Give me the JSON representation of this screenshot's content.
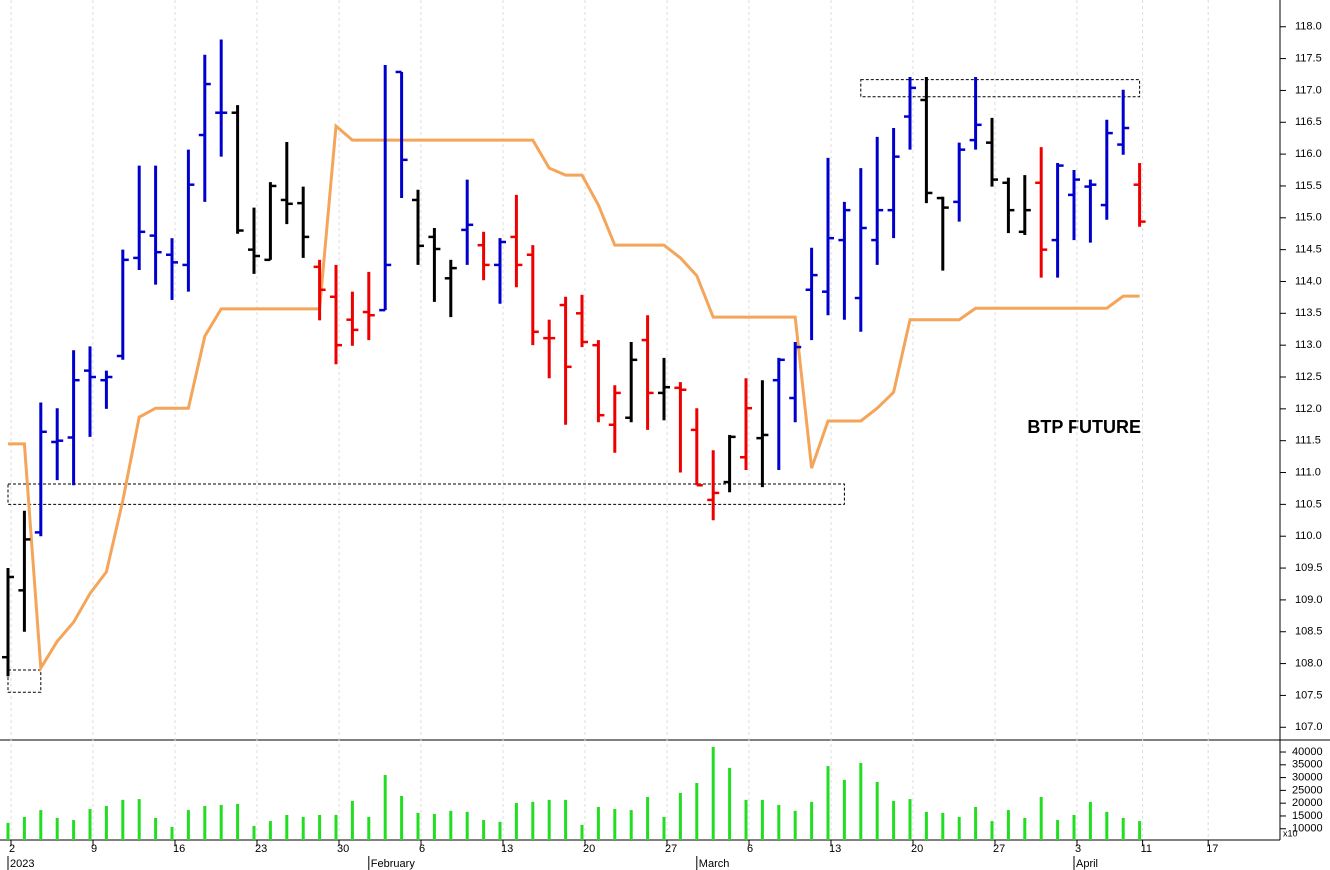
{
  "chart_data": {
    "type": "ohlc",
    "annotation": "BTP FUTURE",
    "categories": [
      "2",
      null,
      null,
      null,
      null,
      "9",
      null,
      null,
      null,
      null,
      "16",
      null,
      null,
      null,
      null,
      "23",
      null,
      null,
      null,
      null,
      "30",
      null,
      null,
      null,
      null,
      "6",
      null,
      null,
      null,
      null,
      "13",
      null,
      null,
      null,
      null,
      "20",
      null,
      null,
      null,
      null,
      "27",
      null,
      null,
      null,
      null,
      "6",
      null,
      null,
      null,
      null,
      "13",
      null,
      null,
      null,
      null,
      "20",
      null,
      null,
      null,
      null,
      "27",
      null,
      null,
      null,
      null,
      "3",
      null,
      null,
      null,
      "11",
      null,
      null,
      null,
      "17",
      null,
      null,
      null,
      null
    ],
    "month_labels": [
      {
        "value": 0,
        "label": "2023"
      },
      {
        "value": 22,
        "label": "February"
      },
      {
        "value": 42,
        "label": "March"
      },
      {
        "value": 65,
        "label": "April"
      }
    ],
    "open": [
      108.1,
      109.15,
      110.06,
      111.48,
      111.55,
      112.6,
      112.45,
      112.83,
      114.37,
      114.72,
      114.42,
      114.26,
      116.3,
      116.65,
      116.65,
      114.5,
      114.34,
      115.28,
      115.23,
      114.23,
      113.76,
      113.4,
      113.52,
      113.55,
      117.29,
      115.28,
      114.7,
      114.05,
      114.81,
      114.57,
      114.26,
      114.7,
      114.42,
      113.11,
      113.63,
      113.5,
      113.0,
      111.75,
      111.86,
      113.08,
      112.25,
      112.33,
      111.67,
      110.57,
      110.85,
      111.24,
      111.54,
      112.45,
      112.17,
      113.87,
      113.84,
      114.65,
      113.74,
      114.65,
      115.12,
      116.59,
      116.85,
      115.31,
      115.25,
      116.22,
      116.18,
      115.55,
      114.78,
      115.55,
      114.65,
      115.36,
      115.49,
      115.2,
      116.15,
      115.52,
      null,
      null,
      null,
      null,
      null,
      null,
      null,
      null
    ],
    "high": [
      109.5,
      110.4,
      112.1,
      112.01,
      112.92,
      112.98,
      112.6,
      114.5,
      115.82,
      115.82,
      114.68,
      116.07,
      117.56,
      117.8,
      116.77,
      115.16,
      115.56,
      116.19,
      115.49,
      114.34,
      114.26,
      113.84,
      114.15,
      117.4,
      117.29,
      115.44,
      114.84,
      114.34,
      115.6,
      114.78,
      114.68,
      115.36,
      114.57,
      113.4,
      113.76,
      113.79,
      113.08,
      112.37,
      113.05,
      113.47,
      112.8,
      112.42,
      112.01,
      111.35,
      111.59,
      112.48,
      112.45,
      112.8,
      113.05,
      114.53,
      115.94,
      115.25,
      115.78,
      116.27,
      116.41,
      117.21,
      117.21,
      115.33,
      116.18,
      117.21,
      116.57,
      115.63,
      115.67,
      116.11,
      115.86,
      115.75,
      115.6,
      116.54,
      117.01,
      115.86,
      null,
      null,
      null,
      null,
      null,
      null,
      null,
      null
    ],
    "low": [
      107.8,
      108.5,
      110.0,
      110.88,
      110.8,
      111.56,
      112.0,
      112.77,
      114.18,
      113.95,
      113.71,
      113.84,
      115.25,
      115.96,
      114.75,
      114.12,
      114.34,
      114.9,
      114.37,
      113.39,
      112.7,
      112.99,
      113.08,
      113.55,
      115.31,
      114.26,
      113.68,
      113.44,
      114.26,
      114.02,
      113.65,
      113.91,
      113.0,
      112.48,
      111.75,
      112.97,
      111.79,
      111.31,
      111.79,
      111.67,
      111.82,
      111.0,
      110.8,
      110.25,
      110.69,
      111.04,
      110.77,
      111.04,
      111.79,
      113.08,
      113.47,
      113.4,
      113.21,
      114.26,
      114.68,
      116.07,
      115.23,
      114.17,
      114.94,
      116.07,
      115.49,
      114.76,
      114.73,
      114.06,
      114.06,
      114.65,
      114.61,
      114.97,
      115.99,
      114.86,
      null,
      null,
      null,
      null,
      null,
      null,
      null,
      null
    ],
    "close": [
      109.36,
      109.95,
      111.64,
      111.5,
      112.45,
      112.5,
      112.5,
      114.34,
      114.78,
      114.46,
      114.3,
      115.52,
      117.1,
      116.65,
      114.8,
      114.4,
      115.5,
      115.22,
      114.7,
      113.87,
      113.0,
      113.24,
      113.47,
      114.26,
      115.91,
      114.56,
      114.51,
      114.21,
      114.89,
      114.26,
      114.62,
      114.26,
      113.21,
      113.11,
      112.66,
      113.05,
      111.9,
      112.25,
      112.77,
      112.25,
      112.34,
      112.3,
      110.8,
      110.68,
      111.56,
      112.01,
      111.59,
      112.77,
      112.97,
      114.1,
      114.68,
      115.12,
      114.84,
      115.12,
      115.96,
      117.04,
      115.39,
      115.16,
      116.07,
      116.46,
      115.6,
      115.12,
      115.12,
      114.5,
      115.82,
      115.6,
      115.52,
      116.33,
      116.41,
      114.94,
      null,
      null,
      null,
      null,
      null,
      null,
      null,
      null
    ],
    "colors": [
      "#000000",
      "#000000",
      "#0000cc",
      "#0000cc",
      "#0000cc",
      "#0000cc",
      "#0000cc",
      "#0000cc",
      "#0000cc",
      "#0000cc",
      "#0000cc",
      "#0000cc",
      "#0000cc",
      "#0000cc",
      "#000000",
      "#000000",
      "#000000",
      "#000000",
      "#000000",
      "#ee0000",
      "#ee0000",
      "#ee0000",
      "#ee0000",
      "#0000cc",
      "#0000cc",
      "#000000",
      "#000000",
      "#000000",
      "#0000cc",
      "#ee0000",
      "#0000cc",
      "#ee0000",
      "#ee0000",
      "#ee0000",
      "#ee0000",
      "#ee0000",
      "#ee0000",
      "#ee0000",
      "#000000",
      "#ee0000",
      "#000000",
      "#ee0000",
      "#ee0000",
      "#ee0000",
      "#000000",
      "#ee0000",
      "#000000",
      "#0000cc",
      "#0000cc",
      "#0000cc",
      "#0000cc",
      "#0000cc",
      "#0000cc",
      "#0000cc",
      "#0000cc",
      "#0000cc",
      "#000000",
      "#000000",
      "#0000cc",
      "#0000cc",
      "#000000",
      "#000000",
      "#000000",
      "#ee0000",
      "#0000cc",
      "#0000cc",
      "#0000cc",
      "#0000cc",
      "#0000cc",
      "#ee0000",
      null,
      null,
      null,
      null,
      null,
      null,
      null,
      null
    ],
    "stop_line": {
      "color": "#f5a55a",
      "values": [
        111.45,
        111.45,
        107.93,
        108.35,
        108.65,
        109.1,
        109.44,
        110.56,
        111.87,
        112.01,
        112.01,
        112.01,
        113.14,
        113.57,
        113.57,
        113.57,
        113.57,
        113.57,
        113.57,
        113.57,
        116.44,
        116.22,
        116.22,
        116.22,
        116.22,
        116.22,
        116.22,
        116.22,
        116.22,
        116.22,
        116.22,
        116.22,
        116.22,
        115.78,
        115.67,
        115.67,
        115.2,
        114.57,
        114.57,
        114.57,
        114.57,
        114.37,
        114.09,
        113.44,
        113.44,
        113.44,
        113.44,
        113.44,
        113.44,
        111.07,
        111.81,
        111.81,
        111.81,
        112.01,
        112.26,
        113.4,
        113.4,
        113.4,
        113.4,
        113.58,
        113.58,
        113.58,
        113.58,
        113.58,
        113.58,
        113.58,
        113.58,
        113.58,
        113.77,
        113.77,
        null,
        null,
        null,
        null,
        null,
        null,
        null,
        null
      ]
    },
    "zones": [
      {
        "start": 0,
        "end": 51,
        "low": 110.5,
        "high": 110.82
      },
      {
        "start": 52,
        "end": 69,
        "low": 116.9,
        "high": 117.17
      },
      {
        "start": 0,
        "end": 2,
        "low": 107.55,
        "high": 107.9
      }
    ],
    "ylim": [
      106.8,
      118.42
    ],
    "yticks": [
      {
        "value": 107,
        "label": "107.0"
      },
      107.5,
      {
        "value": 108,
        "label": "108.0"
      },
      108.5,
      {
        "value": 109,
        "label": "109.0"
      },
      109.5,
      {
        "value": 110,
        "label": "110.0"
      },
      110.5,
      {
        "value": 111,
        "label": "111.0"
      },
      111.5,
      {
        "value": 112,
        "label": "112.0"
      },
      112.5,
      {
        "value": 113,
        "label": "113.0"
      },
      113.5,
      {
        "value": 114,
        "label": "114.0"
      },
      114.5,
      {
        "value": 115,
        "label": "115.0"
      },
      115.5,
      {
        "value": 116,
        "label": "116.0"
      },
      116.5,
      {
        "value": 117,
        "label": "117.0"
      },
      117.5,
      {
        "value": 118,
        "label": "118.0"
      }
    ],
    "grid": true,
    "volume": {
      "color": "#22dd22",
      "unit_label": "x10",
      "ylim": [
        5600,
        44700
      ],
      "yticks": [
        10000,
        15000,
        20000,
        25000,
        30000,
        35000,
        40000
      ],
      "values": [
        12300,
        14600,
        17300,
        14200,
        13400,
        17700,
        18900,
        21300,
        21600,
        14200,
        10700,
        17300,
        18900,
        19300,
        19700,
        11100,
        13000,
        15400,
        14600,
        15400,
        15400,
        20900,
        14600,
        31000,
        22800,
        16200,
        15800,
        17000,
        16600,
        13400,
        12700,
        20100,
        20500,
        21300,
        21300,
        11500,
        18500,
        17700,
        17300,
        22400,
        14600,
        24000,
        27900,
        42000,
        33800,
        21300,
        21300,
        19300,
        17000,
        20500,
        34500,
        29100,
        35700,
        28300,
        20900,
        21600,
        16600,
        16200,
        14600,
        18500,
        13000,
        17300,
        14200,
        22400,
        13400,
        15400,
        20500,
        16600,
        14200,
        13000,
        null,
        null,
        null,
        null,
        null,
        null,
        null,
        null
      ]
    }
  }
}
